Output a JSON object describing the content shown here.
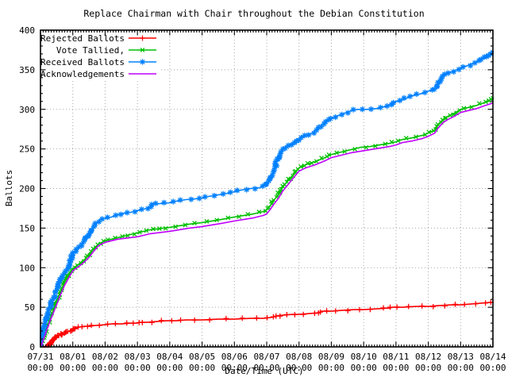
{
  "chart_data": {
    "type": "line",
    "title": "Replace Chairman with Chair throughout the Debian Constitution",
    "xlabel": "Date/Time (UTC)",
    "ylabel": "Ballots",
    "xlim_days": [
      0,
      14
    ],
    "ylim": [
      0,
      400
    ],
    "y_ticks": [
      0,
      50,
      100,
      150,
      200,
      250,
      300,
      350,
      400
    ],
    "y_minor_step": 10,
    "x_minor_per_day": 12,
    "x_tick_labels": [
      "07/31",
      "08/01",
      "08/02",
      "08/03",
      "08/04",
      "08/05",
      "08/06",
      "08/07",
      "08/08",
      "08/09",
      "08/10",
      "08/11",
      "08/12",
      "08/13",
      "08/14"
    ],
    "x_tick_sublabel": "00:00",
    "grid": true,
    "legend_position": "top-left",
    "colors": {
      "background": "#ffffff",
      "text": "#000000",
      "border": "#000000",
      "grid": "#a8a8a8",
      "rejected": "#ff0000",
      "tallied": "#00c000",
      "received": "#0080ff",
      "acknowledgements": "#c000ff"
    },
    "series": [
      {
        "name": "Rejected Ballots",
        "color": "#ff0000",
        "marker": "plus",
        "marker_every_ballots": 0.7,
        "points": [
          [
            0,
            0
          ],
          [
            0.2,
            0
          ],
          [
            0.25,
            2
          ],
          [
            0.3,
            4
          ],
          [
            0.35,
            7
          ],
          [
            0.4,
            10
          ],
          [
            0.5,
            13
          ],
          [
            0.6,
            15
          ],
          [
            0.7,
            17
          ],
          [
            0.8,
            19
          ],
          [
            0.9,
            20
          ],
          [
            1.0,
            22
          ],
          [
            1.05,
            23
          ],
          [
            1.1,
            24
          ],
          [
            1.2,
            25
          ],
          [
            1.35,
            26
          ],
          [
            1.5,
            26
          ],
          [
            1.7,
            27
          ],
          [
            2.0,
            28
          ],
          [
            2.2,
            29
          ],
          [
            2.5,
            29
          ],
          [
            2.8,
            30
          ],
          [
            3.0,
            30
          ],
          [
            3.05,
            31
          ],
          [
            3.3,
            31
          ],
          [
            3.6,
            32
          ],
          [
            3.9,
            33
          ],
          [
            4.2,
            33
          ],
          [
            4.5,
            34
          ],
          [
            5.0,
            34
          ],
          [
            5.5,
            35
          ],
          [
            6.0,
            35
          ],
          [
            6.5,
            36
          ],
          [
            6.9,
            36
          ],
          [
            7.1,
            37
          ],
          [
            7.25,
            38
          ],
          [
            7.3,
            39
          ],
          [
            7.5,
            40
          ],
          [
            7.8,
            41
          ],
          [
            8.0,
            41
          ],
          [
            8.3,
            42
          ],
          [
            8.6,
            43
          ],
          [
            8.65,
            44
          ],
          [
            8.7,
            45
          ],
          [
            9.0,
            45
          ],
          [
            9.3,
            46
          ],
          [
            9.7,
            47
          ],
          [
            10.0,
            47
          ],
          [
            10.4,
            48
          ],
          [
            10.8,
            49
          ],
          [
            10.9,
            50
          ],
          [
            11.2,
            50
          ],
          [
            11.6,
            51
          ],
          [
            12.0,
            51
          ],
          [
            12.3,
            52
          ],
          [
            12.7,
            53
          ],
          [
            13.0,
            53
          ],
          [
            13.3,
            54
          ],
          [
            13.6,
            55
          ],
          [
            13.9,
            56
          ],
          [
            14.0,
            56
          ]
        ]
      },
      {
        "name": "Vote Tallied,",
        "color": "#00c000",
        "marker": "cross",
        "marker_every_ballots": 2.6,
        "points": [
          [
            0,
            0
          ],
          [
            0.05,
            5
          ],
          [
            0.1,
            12
          ],
          [
            0.2,
            25
          ],
          [
            0.3,
            36
          ],
          [
            0.45,
            52
          ],
          [
            0.6,
            68
          ],
          [
            0.75,
            82
          ],
          [
            0.9,
            92
          ],
          [
            1.0,
            99
          ],
          [
            1.1,
            102
          ],
          [
            1.2,
            105
          ],
          [
            1.35,
            110
          ],
          [
            1.5,
            116
          ],
          [
            1.65,
            124
          ],
          [
            1.8,
            130
          ],
          [
            2.0,
            134
          ],
          [
            2.2,
            136
          ],
          [
            2.4,
            138
          ],
          [
            2.6,
            140
          ],
          [
            2.8,
            142
          ],
          [
            3.0,
            144
          ],
          [
            3.2,
            146
          ],
          [
            3.4,
            148
          ],
          [
            3.6,
            149
          ],
          [
            3.8,
            150
          ],
          [
            4.0,
            151
          ],
          [
            4.3,
            153
          ],
          [
            4.6,
            155
          ],
          [
            5.0,
            157
          ],
          [
            5.3,
            159
          ],
          [
            5.6,
            161
          ],
          [
            6.0,
            164
          ],
          [
            6.3,
            166
          ],
          [
            6.6,
            168
          ],
          [
            6.9,
            171
          ],
          [
            7.0,
            173
          ],
          [
            7.1,
            178
          ],
          [
            7.2,
            184
          ],
          [
            7.35,
            192
          ],
          [
            7.5,
            202
          ],
          [
            7.7,
            212
          ],
          [
            7.9,
            221
          ],
          [
            8.0,
            226
          ],
          [
            8.2,
            230
          ],
          [
            8.5,
            234
          ],
          [
            8.8,
            239
          ],
          [
            9.0,
            243
          ],
          [
            9.3,
            246
          ],
          [
            9.6,
            249
          ],
          [
            9.9,
            252
          ],
          [
            10.2,
            253
          ],
          [
            10.5,
            255
          ],
          [
            10.8,
            257
          ],
          [
            11.0,
            259
          ],
          [
            11.2,
            262
          ],
          [
            11.5,
            264
          ],
          [
            11.8,
            267
          ],
          [
            12.0,
            270
          ],
          [
            12.2,
            274
          ],
          [
            12.3,
            280
          ],
          [
            12.45,
            287
          ],
          [
            12.6,
            291
          ],
          [
            12.8,
            295
          ],
          [
            13.0,
            300
          ],
          [
            13.2,
            302
          ],
          [
            13.5,
            305
          ],
          [
            13.7,
            308
          ],
          [
            13.85,
            310
          ],
          [
            14.0,
            314
          ]
        ]
      },
      {
        "name": "Received Ballots",
        "color": "#0080ff",
        "marker": "star",
        "marker_every_ballots": 2.3,
        "points": [
          [
            0,
            0
          ],
          [
            0.04,
            8
          ],
          [
            0.08,
            18
          ],
          [
            0.15,
            30
          ],
          [
            0.25,
            45
          ],
          [
            0.4,
            62
          ],
          [
            0.55,
            78
          ],
          [
            0.7,
            90
          ],
          [
            0.85,
            100
          ],
          [
            1.0,
            118
          ],
          [
            1.1,
            122
          ],
          [
            1.25,
            127
          ],
          [
            1.4,
            137
          ],
          [
            1.5,
            143
          ],
          [
            1.6,
            150
          ],
          [
            1.75,
            157
          ],
          [
            1.85,
            160
          ],
          [
            2.0,
            162
          ],
          [
            2.2,
            164
          ],
          [
            2.4,
            167
          ],
          [
            2.6,
            169
          ],
          [
            2.8,
            170
          ],
          [
            3.0,
            172
          ],
          [
            3.2,
            174
          ],
          [
            3.4,
            176
          ],
          [
            3.45,
            180
          ],
          [
            3.7,
            181
          ],
          [
            4.0,
            182
          ],
          [
            4.2,
            184
          ],
          [
            4.5,
            186
          ],
          [
            4.8,
            187
          ],
          [
            5.0,
            188
          ],
          [
            5.2,
            190
          ],
          [
            5.5,
            192
          ],
          [
            5.8,
            194
          ],
          [
            6.0,
            196
          ],
          [
            6.2,
            198
          ],
          [
            6.5,
            200
          ],
          [
            6.8,
            201
          ],
          [
            7.0,
            205
          ],
          [
            7.1,
            210
          ],
          [
            7.2,
            218
          ],
          [
            7.3,
            232
          ],
          [
            7.4,
            245
          ],
          [
            7.5,
            250
          ],
          [
            7.6,
            253
          ],
          [
            7.8,
            257
          ],
          [
            8.0,
            263
          ],
          [
            8.2,
            267
          ],
          [
            8.4,
            270
          ],
          [
            8.6,
            275
          ],
          [
            8.8,
            283
          ],
          [
            9.0,
            289
          ],
          [
            9.2,
            292
          ],
          [
            9.4,
            295
          ],
          [
            9.6,
            298
          ],
          [
            9.8,
            300
          ],
          [
            10.1,
            300
          ],
          [
            10.4,
            301
          ],
          [
            10.7,
            304
          ],
          [
            11.0,
            310
          ],
          [
            11.2,
            312
          ],
          [
            11.5,
            317
          ],
          [
            11.8,
            320
          ],
          [
            12.0,
            323
          ],
          [
            12.2,
            325
          ],
          [
            12.3,
            332
          ],
          [
            12.4,
            341
          ],
          [
            12.5,
            345
          ],
          [
            12.7,
            347
          ],
          [
            13.0,
            352
          ],
          [
            13.2,
            355
          ],
          [
            13.5,
            360
          ],
          [
            13.7,
            364
          ],
          [
            13.85,
            368
          ],
          [
            14.0,
            372
          ]
        ]
      },
      {
        "name": "Acknowledgements",
        "color": "#c000ff",
        "marker": "none",
        "marker_every_ballots": 0,
        "points": [
          [
            0,
            0
          ],
          [
            0.05,
            4
          ],
          [
            0.1,
            10
          ],
          [
            0.2,
            22
          ],
          [
            0.3,
            33
          ],
          [
            0.45,
            48
          ],
          [
            0.6,
            64
          ],
          [
            0.75,
            78
          ],
          [
            0.9,
            89
          ],
          [
            1.0,
            96
          ],
          [
            1.1,
            99
          ],
          [
            1.2,
            102
          ],
          [
            1.35,
            107
          ],
          [
            1.5,
            113
          ],
          [
            1.65,
            121
          ],
          [
            1.8,
            128
          ],
          [
            2.0,
            132
          ],
          [
            2.2,
            134
          ],
          [
            2.4,
            136
          ],
          [
            2.6,
            137
          ],
          [
            2.8,
            138
          ],
          [
            3.0,
            139
          ],
          [
            3.2,
            141
          ],
          [
            3.4,
            143
          ],
          [
            3.6,
            144
          ],
          [
            3.8,
            145
          ],
          [
            4.0,
            146
          ],
          [
            4.3,
            148
          ],
          [
            4.6,
            150
          ],
          [
            5.0,
            152
          ],
          [
            5.3,
            154
          ],
          [
            5.6,
            156
          ],
          [
            6.0,
            159
          ],
          [
            6.3,
            161
          ],
          [
            6.6,
            163
          ],
          [
            6.9,
            166
          ],
          [
            7.0,
            168
          ],
          [
            7.1,
            173
          ],
          [
            7.2,
            179
          ],
          [
            7.35,
            187
          ],
          [
            7.5,
            197
          ],
          [
            7.7,
            207
          ],
          [
            7.9,
            217
          ],
          [
            8.0,
            222
          ],
          [
            8.2,
            226
          ],
          [
            8.5,
            230
          ],
          [
            8.8,
            235
          ],
          [
            9.0,
            239
          ],
          [
            9.3,
            242
          ],
          [
            9.6,
            245
          ],
          [
            9.9,
            247
          ],
          [
            10.2,
            249
          ],
          [
            10.5,
            251
          ],
          [
            10.8,
            253
          ],
          [
            11.0,
            255
          ],
          [
            11.2,
            258
          ],
          [
            11.5,
            260
          ],
          [
            11.8,
            263
          ],
          [
            12.0,
            266
          ],
          [
            12.2,
            270
          ],
          [
            12.3,
            276
          ],
          [
            12.45,
            283
          ],
          [
            12.6,
            287
          ],
          [
            12.8,
            291
          ],
          [
            13.0,
            296
          ],
          [
            13.2,
            298
          ],
          [
            13.5,
            301
          ],
          [
            13.7,
            304
          ],
          [
            13.85,
            306
          ],
          [
            14.0,
            308
          ]
        ]
      }
    ]
  }
}
